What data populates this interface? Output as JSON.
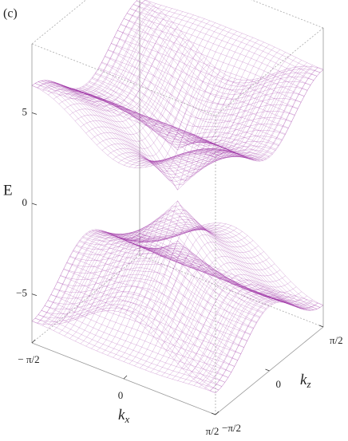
{
  "chart_data": {
    "type": "surface3d",
    "panel_label": "(c)",
    "x_label": "kx",
    "z_label": "kz",
    "y_label": "E",
    "xlim": [
      -1.5708,
      1.5708
    ],
    "xticks": [
      {
        "value": -1.5708,
        "label": "− π/2"
      },
      0,
      {
        "value": 1.5708,
        "label": "π/2"
      }
    ],
    "zlim": [
      -1.5708,
      1.5708
    ],
    "zticks": [
      {
        "value": -1.5708,
        "label": "−π/2"
      },
      0,
      {
        "value": 1.5708,
        "label": "π/2"
      }
    ],
    "ylim": [
      -7.7,
      8.8
    ],
    "yticks": [
      {
        "value": -5,
        "label": "−5"
      },
      0,
      5
    ],
    "color": "#9a2aa0"
  }
}
